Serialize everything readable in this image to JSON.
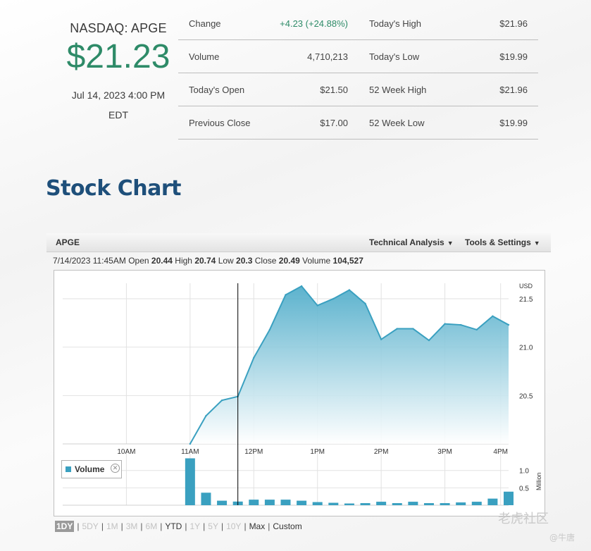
{
  "quote": {
    "ticker": "NASDAQ: APGE",
    "price": "$21.23",
    "date": "Jul 14, 2023 4:00 PM",
    "tz": "EDT"
  },
  "stats": [
    {
      "label1": "Change",
      "value1": "+4.23 (+24.88%)",
      "label2": "Today's High",
      "value2": "$21.96"
    },
    {
      "label1": "Volume",
      "value1": "4,710,213",
      "label2": "Today's Low",
      "value2": "$19.99"
    },
    {
      "label1": "Today's Open",
      "value1": "$21.50",
      "label2": "52 Week High",
      "value2": "$21.96"
    },
    {
      "label1": "Previous Close",
      "value1": "$17.00",
      "label2": "52 Week Low",
      "value2": "$19.99"
    }
  ],
  "section_title": "Stock Chart",
  "toolbar": {
    "symbol": "APGE",
    "technical_analysis": "Technical Analysis",
    "tools_settings": "Tools & Settings"
  },
  "ohlc": {
    "datetime": "7/14/2023 11:45AM",
    "open_label": "Open",
    "open": "20.44",
    "high_label": "High",
    "high": "20.74",
    "low_label": "Low",
    "low": "20.3",
    "close_label": "Close",
    "close": "20.49",
    "volume_label": "Volume",
    "volume": "104,527"
  },
  "volume_legend": "Volume",
  "ranges": [
    {
      "label": "1DY",
      "state": "active"
    },
    {
      "label": "5DY",
      "state": "disabled"
    },
    {
      "label": "1M",
      "state": "disabled"
    },
    {
      "label": "3M",
      "state": "disabled"
    },
    {
      "label": "6M",
      "state": "disabled"
    },
    {
      "label": "YTD",
      "state": "enabled"
    },
    {
      "label": "1Y",
      "state": "disabled"
    },
    {
      "label": "5Y",
      "state": "disabled"
    },
    {
      "label": "10Y",
      "state": "disabled"
    },
    {
      "label": "Max",
      "state": "enabled"
    },
    {
      "label": "Custom",
      "state": "enabled"
    }
  ],
  "watermark": "老虎社区",
  "watermark2": "@牛唐",
  "colors": {
    "accent_green": "#2e8b68",
    "title_blue": "#1e4f7a",
    "series": "#3aa0c0"
  },
  "chart_data": {
    "type": "area",
    "price_axis_unit": "USD",
    "volume_axis_unit": "Million",
    "x_ticks": [
      {
        "label": "10AM",
        "t": 10.0
      },
      {
        "label": "11AM",
        "t": 11.0
      },
      {
        "label": "12PM",
        "t": 12.0
      },
      {
        "label": "1PM",
        "t": 13.0
      },
      {
        "label": "2PM",
        "t": 14.0
      },
      {
        "label": "3PM",
        "t": 15.0
      },
      {
        "label": "4PM",
        "t": 15.875
      }
    ],
    "x_range": [
      9.0,
      16.0
    ],
    "y_ticks": [
      "21.5",
      "21.0",
      "20.5"
    ],
    "y_range": [
      20.0,
      21.66
    ],
    "vol_ticks": [
      "1.0",
      "0.5"
    ],
    "vol_range": [
      0,
      1.4
    ],
    "crosshair_t": 11.75,
    "price": [
      {
        "t": 11.0,
        "v": 20.0
      },
      {
        "t": 11.25,
        "v": 20.29
      },
      {
        "t": 11.5,
        "v": 20.45
      },
      {
        "t": 11.75,
        "v": 20.49
      },
      {
        "t": 12.0,
        "v": 20.89
      },
      {
        "t": 12.25,
        "v": 21.18
      },
      {
        "t": 12.5,
        "v": 21.54
      },
      {
        "t": 12.75,
        "v": 21.63
      },
      {
        "t": 13.0,
        "v": 21.43
      },
      {
        "t": 13.25,
        "v": 21.5
      },
      {
        "t": 13.5,
        "v": 21.59
      },
      {
        "t": 13.75,
        "v": 21.45
      },
      {
        "t": 14.0,
        "v": 21.08
      },
      {
        "t": 14.25,
        "v": 21.19
      },
      {
        "t": 14.5,
        "v": 21.19
      },
      {
        "t": 14.75,
        "v": 21.07
      },
      {
        "t": 15.0,
        "v": 21.24
      },
      {
        "t": 15.25,
        "v": 21.23
      },
      {
        "t": 15.5,
        "v": 21.18
      },
      {
        "t": 15.75,
        "v": 21.32
      },
      {
        "t": 16.0,
        "v": 21.23
      }
    ],
    "volume": [
      {
        "t": 11.0,
        "v": 1.35
      },
      {
        "t": 11.25,
        "v": 0.36
      },
      {
        "t": 11.5,
        "v": 0.13
      },
      {
        "t": 11.75,
        "v": 0.105
      },
      {
        "t": 12.0,
        "v": 0.16
      },
      {
        "t": 12.25,
        "v": 0.16
      },
      {
        "t": 12.5,
        "v": 0.16
      },
      {
        "t": 12.75,
        "v": 0.13
      },
      {
        "t": 13.0,
        "v": 0.09
      },
      {
        "t": 13.25,
        "v": 0.07
      },
      {
        "t": 13.5,
        "v": 0.05
      },
      {
        "t": 13.75,
        "v": 0.06
      },
      {
        "t": 14.0,
        "v": 0.1
      },
      {
        "t": 14.25,
        "v": 0.06
      },
      {
        "t": 14.5,
        "v": 0.1
      },
      {
        "t": 14.75,
        "v": 0.06
      },
      {
        "t": 15.0,
        "v": 0.06
      },
      {
        "t": 15.25,
        "v": 0.08
      },
      {
        "t": 15.5,
        "v": 0.1
      },
      {
        "t": 15.75,
        "v": 0.19
      },
      {
        "t": 16.0,
        "v": 0.39
      }
    ]
  }
}
